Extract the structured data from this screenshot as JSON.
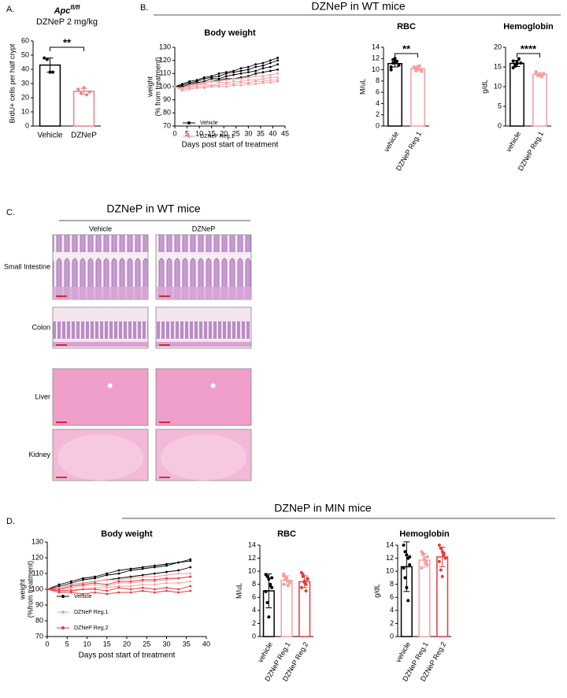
{
  "panels": [
    "A.",
    "B.",
    "C.",
    "D."
  ],
  "headers": {
    "wt": "DZNeP in WT mice",
    "min": "DZNeP in MIN mice"
  },
  "histology": {
    "title": "DZNeP in WT mice",
    "columns": [
      "Vehicle",
      "DZNeP"
    ],
    "rows": [
      "Small Intestine",
      "Colon",
      "Liver",
      "Kidney"
    ]
  },
  "chart_data": [
    {
      "type": "bar",
      "title": "Apc",
      "title_superscript": "fl/fl",
      "subtitle": "DZNeP 2 mg/kg",
      "ylabel": "BrdU+ cells per half crypt",
      "categories": [
        "Vehicle",
        "DZNeP"
      ],
      "values": [
        43,
        24.5
      ],
      "errors": [
        5,
        2
      ],
      "colors": [
        "#000000",
        "#f08080"
      ],
      "points": [
        [
          48,
          47,
          38,
          38
        ],
        [
          26,
          23,
          27,
          22,
          24
        ]
      ],
      "significance": "**",
      "ylim": [
        0,
        60
      ],
      "yticks": [
        0,
        10,
        20,
        30,
        40,
        50,
        60
      ]
    },
    {
      "type": "line",
      "title": "Body weight",
      "ylabel": [
        "weight",
        "(% from treatment)"
      ],
      "xlabel": "Days post start of treatment",
      "x": [
        0,
        3,
        6,
        9,
        12,
        15,
        18,
        21,
        24,
        27,
        30,
        33,
        36,
        39,
        42
      ],
      "series": [
        {
          "name": "Vehicle",
          "color": "#000000",
          "lines": [
            [
              100,
              101,
              103,
              104,
              106,
              107,
              108,
              110,
              111,
              112,
              113,
              115,
              116,
              118,
              120
            ],
            [
              100,
              100,
              102,
              103,
              104,
              106,
              106,
              108,
              109,
              110,
              111,
              112,
              114,
              115,
              117
            ],
            [
              100,
              99,
              101,
              102,
              103,
              104,
              105,
              106,
              106,
              107,
              108,
              110,
              111,
              112,
              113
            ],
            [
              100,
              102,
              104,
              105,
              107,
              108,
              110,
              111,
              112,
              114,
              115,
              117,
              118,
              120,
              122
            ]
          ]
        },
        {
          "name": "DZNeP Reg.1",
          "color": "#f4a0a0",
          "lines": [
            [
              100,
              99,
              100,
              101,
              102,
              101,
              103,
              103,
              104,
              104,
              105,
              105,
              106,
              107,
              107
            ],
            [
              100,
              98,
              99,
              100,
              100,
              101,
              101,
              102,
              102,
              103,
              103,
              104,
              104,
              105,
              105
            ],
            [
              100,
              97,
              98,
              99,
              99,
              100,
              100,
              100,
              101,
              101,
              102,
              102,
              103,
              103,
              104
            ],
            [
              100,
              99,
              101,
              102,
              103,
              104,
              104,
              105,
              106,
              106,
              107,
              108,
              108,
              109,
              110
            ]
          ]
        }
      ],
      "xlim": [
        0,
        45
      ],
      "xticks": [
        0,
        5,
        10,
        15,
        20,
        25,
        30,
        35,
        40,
        45
      ],
      "ylim": [
        70,
        130
      ],
      "yticks": [
        70,
        80,
        90,
        100,
        110,
        120,
        130
      ]
    },
    {
      "type": "bar",
      "title": "RBC",
      "ylabel": "M/uL",
      "categories": [
        "vehicle",
        "DZNeP Reg.1"
      ],
      "values": [
        11.1,
        10.2
      ],
      "errors": [
        0.6,
        0.4
      ],
      "colors": [
        "#000000",
        "#f4a0a0"
      ],
      "points": [
        [
          10.5,
          11.2,
          12.0,
          11.5,
          10.8,
          10.0,
          11.8,
          11.3
        ],
        [
          10.3,
          9.8,
          10.6,
          10.1,
          9.9,
          10.5,
          10.2,
          10.0,
          10.7,
          9.7
        ]
      ],
      "significance": "**",
      "ylim": [
        0,
        14
      ],
      "yticks": [
        0,
        2,
        4,
        6,
        8,
        10,
        12,
        14
      ]
    },
    {
      "type": "bar",
      "title": "Hemoglobin",
      "ylabel": "g/dL",
      "categories": [
        "vehicle",
        "DZNeP Reg.1"
      ],
      "values": [
        15.9,
        13.1
      ],
      "errors": [
        0.8,
        0.5
      ],
      "colors": [
        "#000000",
        "#f4a0a0"
      ],
      "points": [
        [
          16.5,
          15.2,
          15.8,
          17.1,
          16.0,
          14.8,
          15.5,
          16.3
        ],
        [
          13.5,
          12.8,
          13.0,
          12.5,
          13.4,
          13.8,
          12.9,
          13.1,
          12.7,
          13.2
        ]
      ],
      "significance": "****",
      "ylim": [
        0,
        20
      ],
      "yticks": [
        0,
        5,
        10,
        15,
        20
      ]
    },
    {
      "type": "line",
      "title": "Body weight",
      "ylabel": [
        "weight",
        "(%from treatment)"
      ],
      "xlabel": "Days post start of treatment",
      "x": [
        0,
        3,
        6,
        9,
        12,
        15,
        18,
        21,
        24,
        27,
        30,
        33,
        36
      ],
      "series": [
        {
          "name": "Vehicle",
          "color": "#000000",
          "lines": [
            [
              100,
              102,
              104,
              106,
              107,
              109,
              110,
              112,
              113,
              114,
              115,
              117,
              119
            ],
            [
              100,
              101,
              103,
              104,
              105,
              106,
              107,
              108,
              109,
              110,
              111,
              112,
              114
            ],
            [
              100,
              103,
              105,
              107,
              108,
              110,
              112,
              113,
              114,
              115,
              116,
              117,
              118
            ]
          ]
        },
        {
          "name": "DZNeP Reg.1",
          "color": "#f4a0a0",
          "lines": [
            [
              100,
              100,
              101,
              102,
              103,
              102,
              104,
              104,
              105,
              105,
              106,
              107,
              108
            ],
            [
              100,
              99,
              100,
              100,
              101,
              101,
              102,
              102,
              103,
              103,
              104,
              104,
              105
            ],
            [
              100,
              101,
              103,
              104,
              105,
              106,
              106,
              107,
              108,
              108,
              109,
              110,
              110
            ]
          ]
        },
        {
          "name": "DZNeP Reg.2",
          "color": "#e8393a",
          "lines": [
            [
              100,
              99,
              99,
              100,
              100,
              99,
              101,
              100,
              101,
              100,
              101,
              100,
              102
            ],
            [
              100,
              98,
              98,
              97,
              98,
              97,
              98,
              98,
              99,
              98,
              99,
              98,
              99
            ],
            [
              100,
              100,
              102,
              103,
              104,
              103,
              105,
              105,
              106,
              106,
              107,
              107,
              108
            ]
          ]
        }
      ],
      "xlim": [
        0,
        40
      ],
      "xticks": [
        0,
        5,
        10,
        15,
        20,
        25,
        30,
        35,
        40
      ],
      "ylim": [
        70,
        130
      ],
      "yticks": [
        70,
        80,
        90,
        100,
        110,
        120,
        130
      ]
    },
    {
      "type": "bar",
      "title": "RBC",
      "ylabel": "M/uL",
      "categories": [
        "vehicle",
        "DZNeP Reg.1",
        "DZNeP Reg.2"
      ],
      "values": [
        7.0,
        8.6,
        8.4
      ],
      "errors": [
        2.6,
        0.7,
        0.9
      ],
      "colors": [
        "#000000",
        "#f4a0a0",
        "#e8393a"
      ],
      "points": [
        [
          9.5,
          9.2,
          8.8,
          8.0,
          7.5,
          6.9,
          5.2,
          3.0,
          7.8,
          9.0
        ],
        [
          9.6,
          9.2,
          8.8,
          8.5,
          8.2,
          8.0,
          8.7,
          9.0,
          7.8,
          8.4,
          9.3
        ],
        [
          9.8,
          9.2,
          8.5,
          8.0,
          8.8,
          7.5,
          9.5,
          8.3,
          7.0,
          8.9
        ]
      ],
      "ylim": [
        0,
        14
      ],
      "yticks": [
        0,
        2,
        4,
        6,
        8,
        10,
        12,
        14
      ]
    },
    {
      "type": "bar",
      "title": "Hemoglobin",
      "ylabel": "g/dL",
      "categories": [
        "vehicle",
        "DZNeP Reg.1",
        "DZNeP Reg.2"
      ],
      "values": [
        10.7,
        11.7,
        12.2
      ],
      "errors": [
        3.8,
        1.0,
        1.5
      ],
      "colors": [
        "#000000",
        "#f4a0a0",
        "#e8393a"
      ],
      "points": [
        [
          14,
          13,
          12.5,
          12,
          11,
          10.5,
          9,
          7.5,
          5.5,
          12.2
        ],
        [
          13,
          12.5,
          12,
          11.5,
          11,
          10.5,
          12.8,
          11.8,
          11.2,
          12.2
        ],
        [
          14,
          13.5,
          13,
          12.5,
          12,
          11.5,
          10.2,
          9.2,
          12.8
        ]
      ],
      "ylim": [
        0,
        14
      ],
      "yticks": [
        0,
        2,
        4,
        6,
        8,
        10,
        12,
        14
      ]
    }
  ]
}
